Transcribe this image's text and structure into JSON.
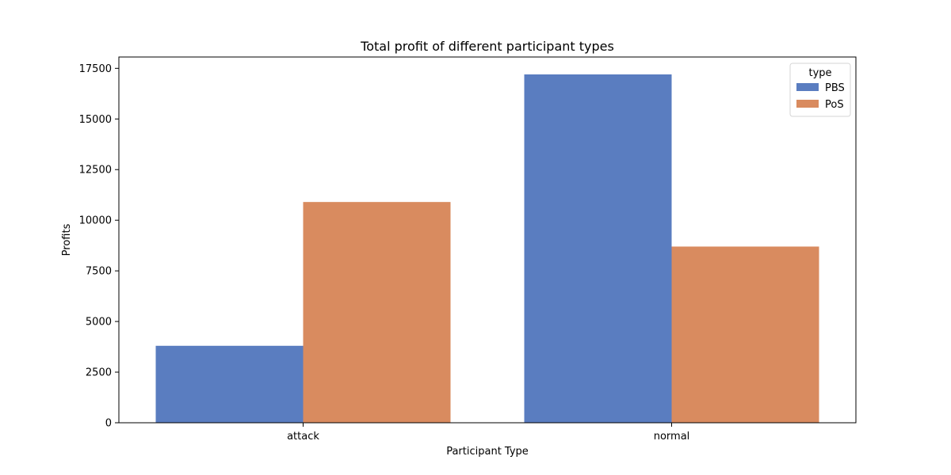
{
  "chart_data": {
    "type": "bar",
    "title": "Total profit of different participant types",
    "xlabel": "Participant Type",
    "ylabel": "Profits",
    "categories": [
      "attack",
      "normal"
    ],
    "series": [
      {
        "name": "PBS",
        "color": "#5a7dc0",
        "values": [
          3800,
          17200
        ]
      },
      {
        "name": "PoS",
        "color": "#d98b5f",
        "values": [
          10900,
          8700
        ]
      }
    ],
    "ylim": [
      0,
      17500
    ],
    "yticks": [
      0,
      2500,
      5000,
      7500,
      10000,
      12500,
      15000,
      17500
    ],
    "grid": false,
    "legend": {
      "title": "type",
      "position": "top-right"
    }
  }
}
